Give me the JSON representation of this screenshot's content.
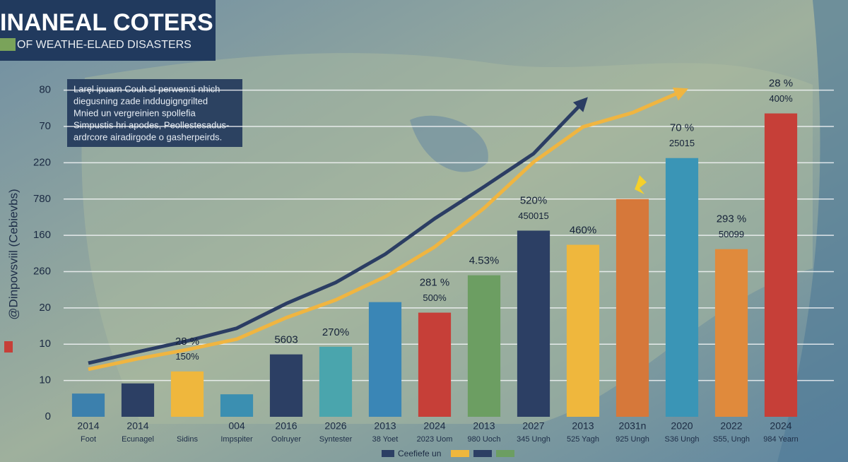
{
  "chart_data": {
    "type": "bar",
    "title": "INANEAL COTERS",
    "subtitle": "OF WEATHE-ELAED DISASTERS",
    "y_label": "@Dinpovsviil (Cebievbs)",
    "info_box": [
      "Laręl ipuarn Couh sl  perwen:ti nhich",
      "diegusning zade inddugigngrilted",
      "Mnied un vergreinien spollefia",
      "Simpustis hri apodes, Peollestesadus-",
      "ardrcore airadirgode o gasherpeirds."
    ],
    "categories": [
      "2014",
      "2014",
      null,
      "004",
      "2016",
      "2026",
      "2013",
      "2024",
      "2013",
      "2027",
      "2013",
      "2031n",
      "2020",
      "2022",
      "2024"
    ],
    "sublabels": [
      "Foot",
      "Ecunagel",
      "Sidins",
      "Impspiter",
      "Oolruyer",
      "Syntester",
      "38 Yoet",
      "2023 Uom",
      "980 Uoch",
      "345 Ungh",
      "525 Yagh",
      "925 Ungh",
      "S36 Ungh",
      "S55, Ungh",
      "984 Yearn"
    ],
    "values": [
      0.64,
      0.92,
      1.25,
      0.62,
      1.72,
      1.93,
      3.16,
      2.87,
      3.9,
      5.13,
      4.74,
      6.0,
      7.13,
      4.62,
      8.36
    ],
    "colors": [
      "#3c80ad",
      "#2c3f64",
      "#efb73d",
      "#3b8fb1",
      "#2c3f64",
      "#4aa5ad",
      "#3a86b6",
      "#c63f38",
      "#6c9e62",
      "#2c3f64",
      "#efb73d",
      "#d6783a",
      "#3a95b6",
      "#e08a3c",
      "#c63f38"
    ],
    "bar_notes": [
      null,
      null,
      [
        "28 %",
        "150%"
      ],
      null,
      [
        "5603"
      ],
      [
        "270%"
      ],
      null,
      [
        "281 %",
        "500%"
      ],
      [
        "4.53%"
      ],
      [
        "520%",
        "450015"
      ],
      [
        "460%"
      ],
      null,
      [
        "70 %",
        "25015"
      ],
      [
        "293 %",
        "50099"
      ],
      [
        "28 %",
        "400%"
      ]
    ],
    "series": [
      {
        "color": "#2b3d63",
        "values": [
          1.48,
          1.79,
          2.09,
          2.44,
          3.12,
          3.7,
          4.48,
          5.46,
          6.34,
          7.25,
          8.67,
          null,
          null,
          null,
          null
        ]
      },
      {
        "color": "#f0b540",
        "values": [
          1.31,
          1.6,
          1.85,
          2.14,
          2.73,
          3.22,
          3.86,
          4.68,
          5.75,
          7.02,
          7.99,
          8.38,
          8.97,
          null,
          null
        ]
      }
    ],
    "ylim": [
      0,
      9.5
    ],
    "yticks": [
      0,
      {
        "value": 1,
        "label": "10"
      },
      {
        "value": 2,
        "label": "10"
      },
      {
        "value": 3,
        "label": "20"
      },
      {
        "value": 4,
        "label": "260"
      },
      {
        "value": 5,
        "label": "160"
      },
      {
        "value": 6,
        "label": "780"
      },
      {
        "value": 7,
        "label": "220"
      },
      {
        "value": 8,
        "label": "70"
      },
      {
        "value": 9,
        "label": "80"
      }
    ],
    "grid": true,
    "legend": {
      "label": "Ceefiefe un",
      "swatches": [
        "#2c3f64",
        "#efb73d",
        "#2c3f64",
        "#6c9e62"
      ]
    }
  }
}
